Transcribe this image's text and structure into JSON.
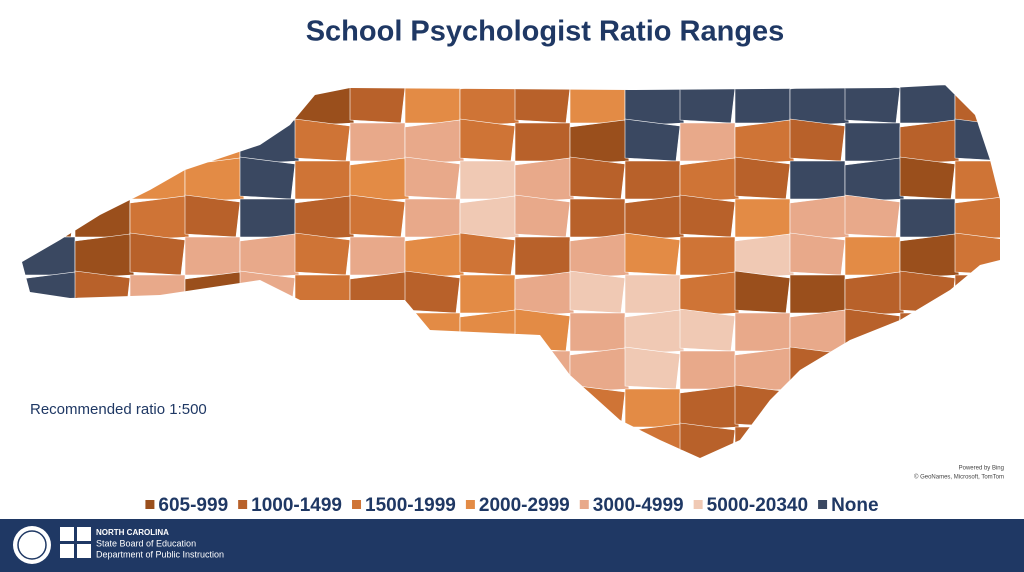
{
  "title": "School Psychologist Ratio Ranges",
  "note": "Recommended ratio 1:500",
  "attribution": {
    "line1": "Powered by Bing",
    "line2": "© GeoNames, Microsoft, TomTom"
  },
  "legend": {
    "items": [
      {
        "label": "605-999",
        "color": "#9a4f1c"
      },
      {
        "label": "1000-1499",
        "color": "#b8612a"
      },
      {
        "label": "1500-1999",
        "color": "#cf7436"
      },
      {
        "label": "2000-2999",
        "color": "#e38b45"
      },
      {
        "label": "3000-4999",
        "color": "#e8a98a"
      },
      {
        "label": "5000-20340",
        "color": "#f0c9b4"
      },
      {
        "label": "None",
        "color": "#3a4861"
      }
    ]
  },
  "footer": {
    "line1": "NORTH CAROLINA",
    "line2": "State Board of Education",
    "line3": "Department of Public Instruction"
  }
}
